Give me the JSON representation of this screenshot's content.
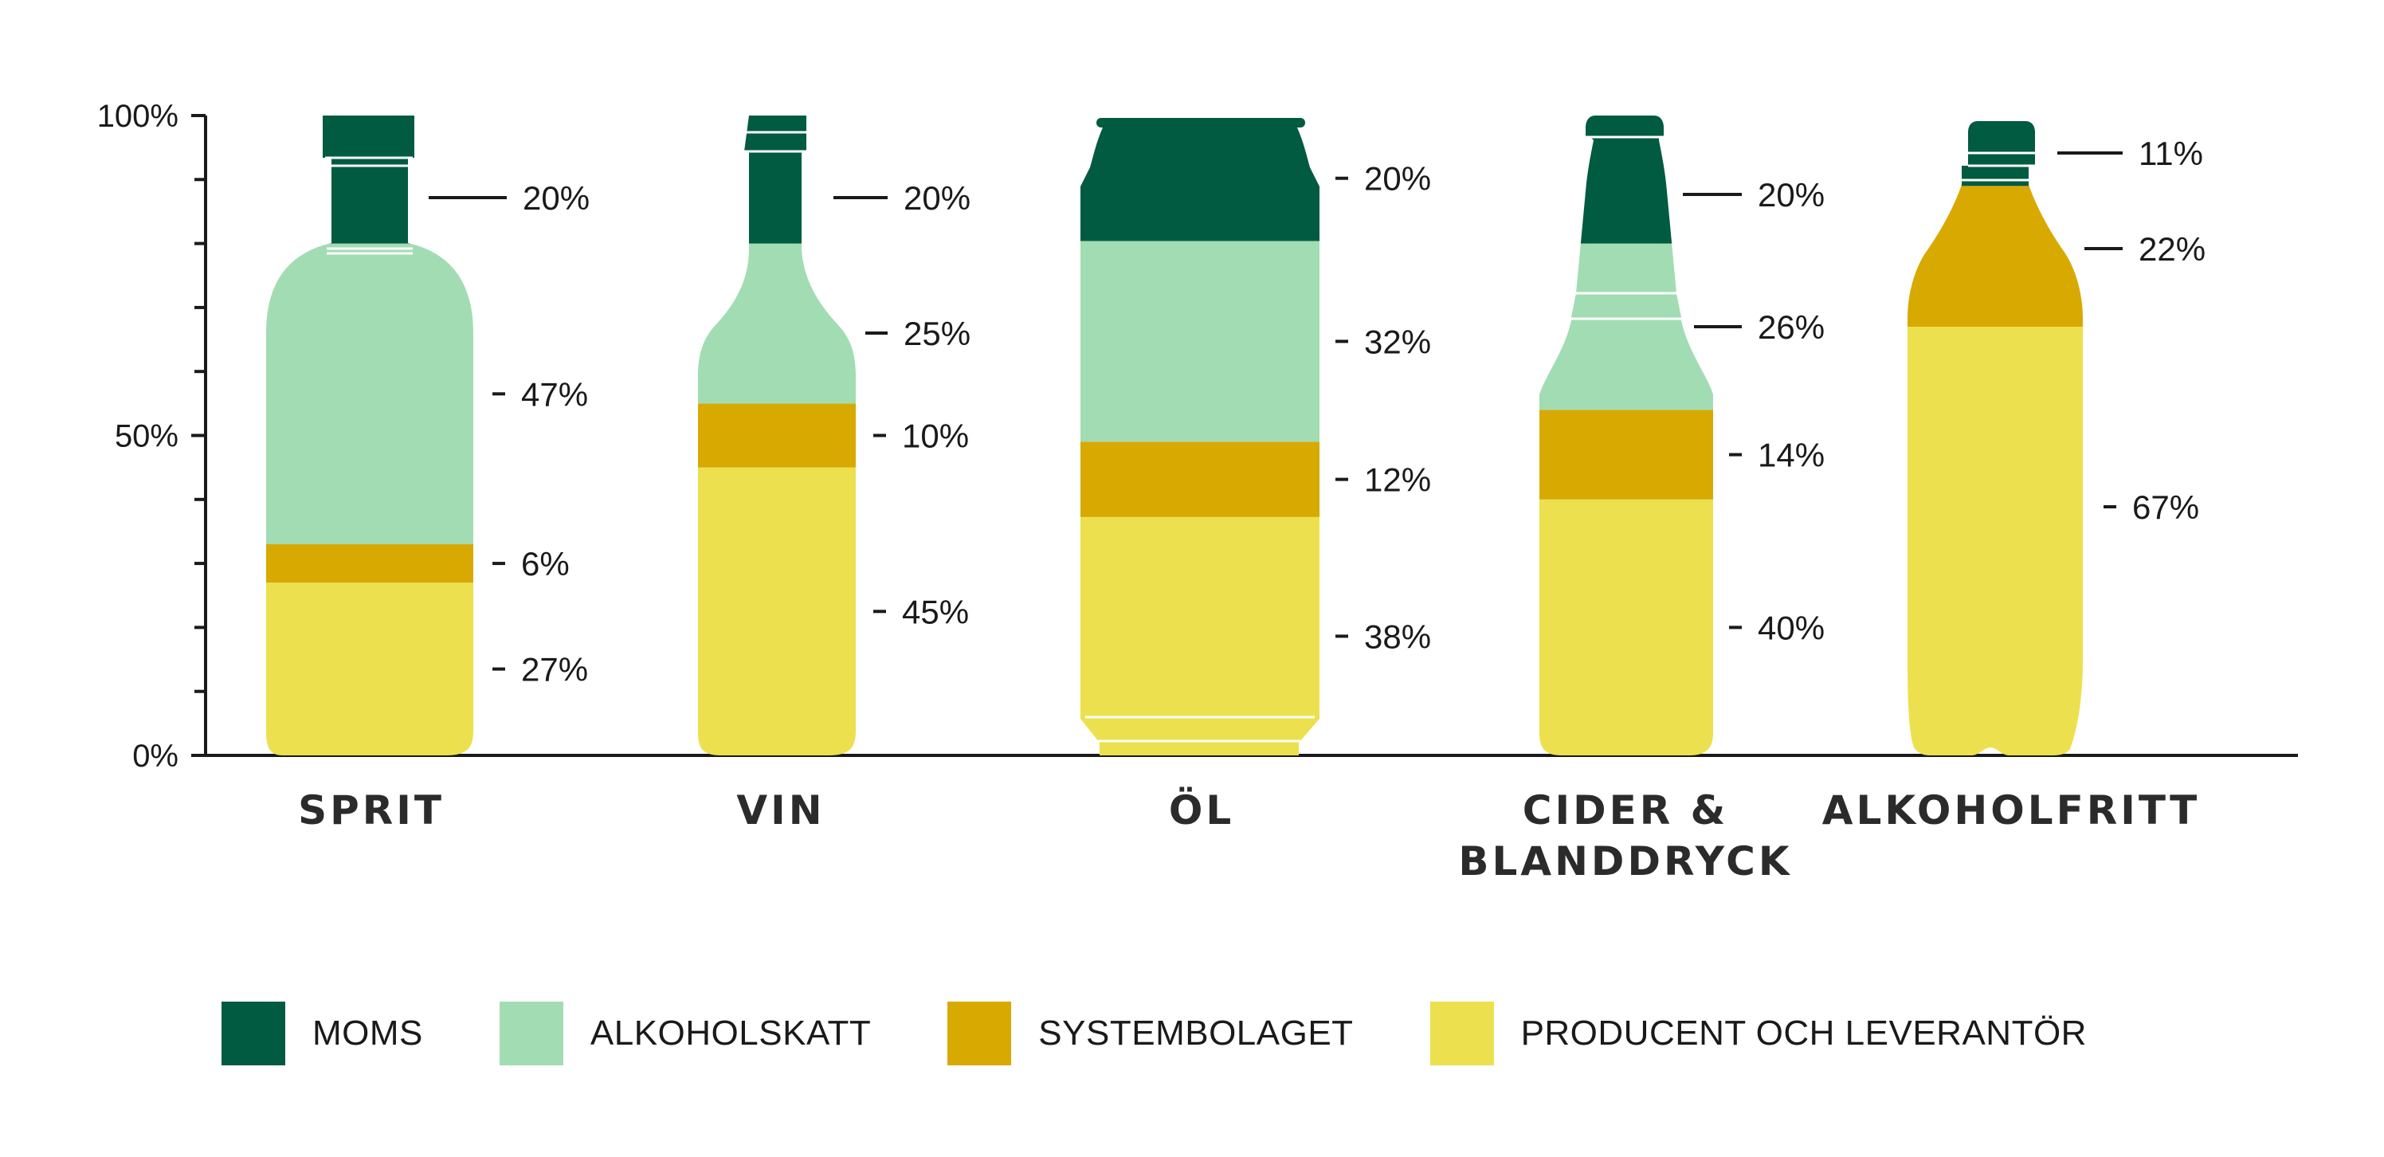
{
  "chart_data": {
    "type": "bar",
    "stacked": true,
    "y_axis": {
      "ticks": [
        "0%",
        "50%",
        "100%"
      ],
      "ylim": [
        0,
        100
      ]
    },
    "categories": [
      {
        "name": "SPRIT",
        "container": "spirits-bottle"
      },
      {
        "name": "VIN",
        "container": "wine-bottle"
      },
      {
        "name": "ÖL",
        "container": "beer-can"
      },
      {
        "name": "CIDER & BLANDDRYCK",
        "name_lines": [
          "CIDER &",
          "BLANDDRYCK"
        ],
        "container": "cider-bottle"
      },
      {
        "name": "ALKOHOLFRITT",
        "container": "pet-bottle"
      }
    ],
    "series": [
      {
        "name": "PRODUCENT OCH LEVERANTÖR",
        "color": "#ece04e",
        "values": [
          27,
          45,
          38,
          40,
          67
        ]
      },
      {
        "name": "SYSTEMBOLAGET",
        "color": "#d8a901",
        "values": [
          6,
          10,
          12,
          14,
          22
        ]
      },
      {
        "name": "ALKOHOLSKATT",
        "color": "#a2dcb3",
        "values": [
          47,
          25,
          32,
          26,
          null
        ]
      },
      {
        "name": "MOMS",
        "color": "#005b40",
        "values": [
          20,
          20,
          20,
          20,
          11
        ]
      }
    ],
    "value_labels": [
      [
        "27%",
        "6%",
        "47%",
        "20%"
      ],
      [
        "45%",
        "10%",
        "25%",
        "20%"
      ],
      [
        "38%",
        "12%",
        "32%",
        "20%"
      ],
      [
        "40%",
        "14%",
        "26%",
        "20%"
      ],
      [
        "67%",
        "22%",
        "11%"
      ]
    ],
    "legend": {
      "order": [
        "MOMS",
        "ALKOHOLSKATT",
        "SYSTEMBOLAGET",
        "PRODUCENT OCH LEVERANTÖR"
      ],
      "placement": "bottom"
    },
    "grid": false
  }
}
